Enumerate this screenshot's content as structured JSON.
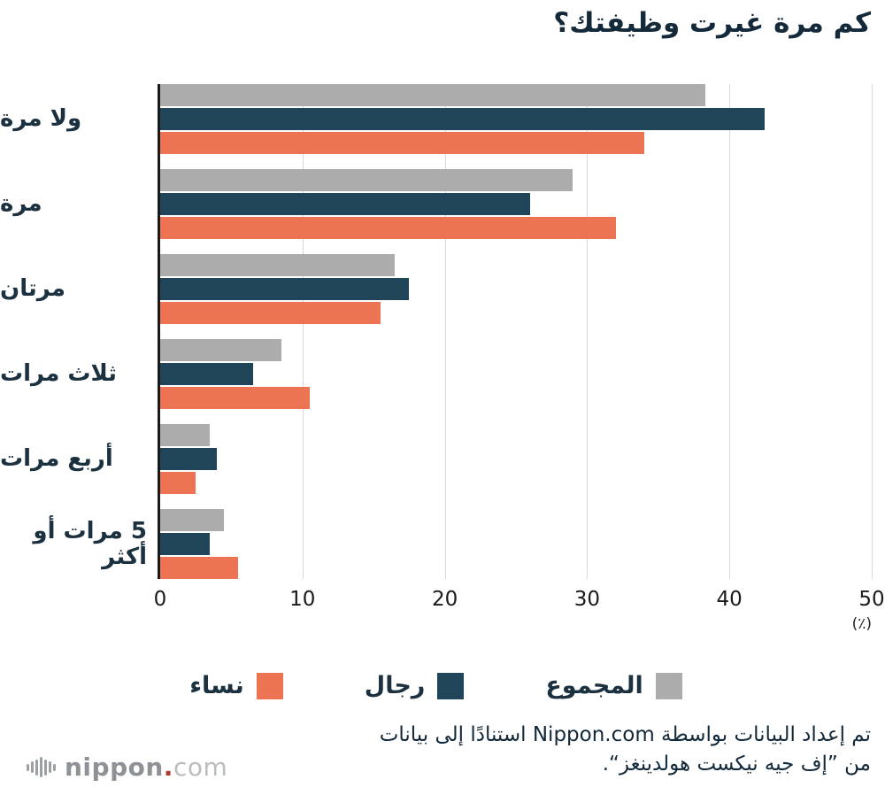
{
  "title": "كم مرة غيرت وظيفتك؟",
  "chart_data": {
    "type": "bar",
    "orientation": "horizontal",
    "title": "كم مرة غيرت وظيفتك؟",
    "unit_label": "(٪)",
    "xlim": [
      0,
      50
    ],
    "xticks": [
      0,
      10,
      20,
      30,
      40,
      50
    ],
    "grid": "vertical-light-gray",
    "legend_position": "bottom",
    "categories": [
      "ولا مرة",
      "مرة",
      "مرتان",
      "ثلاث مرات",
      "أربع مرات",
      "5 مرات أو أكثر"
    ],
    "series": [
      {
        "key": "total",
        "name": "المجموع",
        "color": "#ACACAC",
        "values": [
          38.3,
          29,
          16.5,
          8.5,
          3.5,
          4.5
        ]
      },
      {
        "key": "men",
        "name": "رجال",
        "color": "#204558",
        "values": [
          42.5,
          26,
          17.5,
          6.5,
          4,
          3.5
        ]
      },
      {
        "key": "women",
        "name": "نساء",
        "color": "#ED7452",
        "values": [
          34,
          32,
          15.5,
          10.5,
          2.5,
          5.5
        ]
      }
    ]
  },
  "legend": {
    "items": [
      {
        "key": "total",
        "label": "المجموع",
        "color": "#ACACAC"
      },
      {
        "key": "men",
        "label": "رجال",
        "color": "#204558"
      },
      {
        "key": "women",
        "label": "نساء",
        "color": "#ED7452"
      }
    ]
  },
  "source": {
    "line1": "تم إعداد البيانات بواسطة Nippon.com استنادًا إلى بيانات",
    "line2": "من ”إف جيه نيكست هولدينغز“."
  },
  "footer": {
    "brand_bold": "nippon",
    "brand_dot": ".",
    "brand_rest": "com"
  }
}
